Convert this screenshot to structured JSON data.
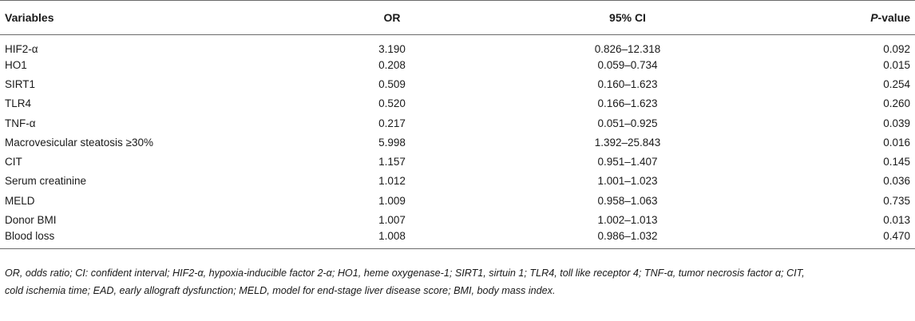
{
  "table": {
    "headers": {
      "variables": "Variables",
      "or": "OR",
      "ci": "95% CI",
      "p_italic": "P",
      "p_suffix": "-value"
    },
    "rows": [
      {
        "variable": "HIF2-α",
        "or": "3.190",
        "ci": "0.826–12.318",
        "p": "0.092"
      },
      {
        "variable": "HO1",
        "or": "0.208",
        "ci": "0.059–0.734",
        "p": "0.015"
      },
      {
        "variable": "SIRT1",
        "or": "0.509",
        "ci": "0.160–1.623",
        "p": "0.254"
      },
      {
        "variable": "TLR4",
        "or": "0.520",
        "ci": "0.166–1.623",
        "p": "0.260"
      },
      {
        "variable": "TNF-α",
        "or": "0.217",
        "ci": "0.051–0.925",
        "p": "0.039"
      },
      {
        "variable": "Macrovesicular steatosis ≥30%",
        "or": "5.998",
        "ci": "1.392–25.843",
        "p": "0.016"
      },
      {
        "variable": "CIT",
        "or": "1.157",
        "ci": "0.951–1.407",
        "p": "0.145"
      },
      {
        "variable": "Serum creatinine",
        "or": "1.012",
        "ci": "1.001–1.023",
        "p": "0.036"
      },
      {
        "variable": "MELD",
        "or": "1.009",
        "ci": "0.958–1.063",
        "p": "0.735"
      },
      {
        "variable": "Donor BMI",
        "or": "1.007",
        "ci": "1.002–1.013",
        "p": "0.013"
      },
      {
        "variable": "Blood loss",
        "or": "1.008",
        "ci": "0.986–1.032",
        "p": "0.470"
      }
    ]
  },
  "footnote": {
    "line1": "OR, odds ratio; CI: confident interval; HIF2-α, hypoxia-inducible factor 2-α; HO1, heme oxygenase-1; SIRT1, sirtuin 1; TLR4, toll like receptor 4; TNF-α, tumor necrosis factor α; CIT,",
    "line2": "cold ischemia time; EAD, early allograft dysfunction; MELD, model for end-stage liver disease score; BMI, body mass index."
  }
}
